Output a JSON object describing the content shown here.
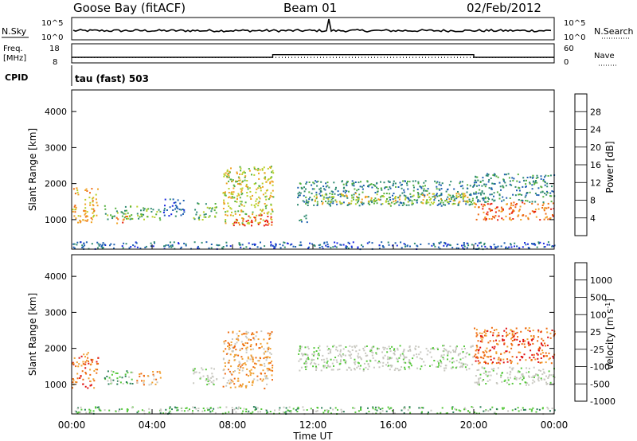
{
  "header": {
    "station": "Goose Bay (fitACF)",
    "beam": "Beam 01",
    "date": "02/Feb/2012"
  },
  "top_panels": {
    "nsky_label": "N.Sky",
    "nsearch_label": "N.Search",
    "noise_ticks": [
      "10^5",
      "10^0"
    ],
    "freq_label": "Freq.",
    "freq_unit": "[MHz]",
    "freq_ticks": [
      "18",
      "8"
    ],
    "nave_label": "Nave",
    "nave_ticks": [
      "60",
      "0"
    ],
    "cpid_label": "CPID",
    "cpid_value": "tau (fast) 503"
  },
  "colors": {
    "power_scale": [
      "#1a28e0",
      "#1d5fb0",
      "#2e8a70",
      "#55b040",
      "#b8d028",
      "#f0a020",
      "#ee6a10",
      "#e82010"
    ],
    "velocity_scale": [
      "#1b27dd",
      "#2a7f58",
      "#55c83a",
      "#c8c8c0",
      "#c8c8c0",
      "#f0a030",
      "#ee6a10",
      "#e01010"
    ],
    "ground_scatter": "#c8c8c0"
  },
  "chart_data": [
    {
      "type": "line",
      "name": "noise",
      "ylabel": "N.Sky",
      "y2label": "N.Search",
      "yticks": [
        "10^5",
        "10^0"
      ],
      "description_values": {
        "sky_noise_level": "~10^1 (near-constant)",
        "spike_time_hours": 12.7
      }
    },
    {
      "type": "line",
      "name": "frequency-nave",
      "ylabel": "Freq. [MHz]",
      "ylim": [
        8,
        18
      ],
      "y2label": "Nave",
      "y2lim": [
        0,
        60
      ],
      "freq_steps": [
        {
          "from_hours": 0,
          "to_hours": 10,
          "mhz": 10.9
        },
        {
          "from_hours": 10,
          "to_hours": 20,
          "mhz": 12.3
        },
        {
          "from_hours": 20,
          "to_hours": 24,
          "mhz": 10.9
        }
      ],
      "nave_level": 17
    },
    {
      "type": "heatmap",
      "name": "power",
      "ylabel": "Slant Range [km]",
      "xlim": [
        0,
        24
      ],
      "ylim": [
        180,
        4600
      ],
      "yticks": [
        1000,
        2000,
        3000,
        4000
      ],
      "colorbar_label": "Power [dB]",
      "colorbar_ticks": [
        "4",
        "8",
        "12",
        "16",
        "20",
        "24",
        "28"
      ],
      "blobs": [
        {
          "t0": 0.0,
          "t1": 1.3,
          "r0": 900,
          "r1": 1900,
          "level": 5
        },
        {
          "t0": 1.6,
          "t1": 3.0,
          "r0": 1000,
          "r1": 1400,
          "level": 3
        },
        {
          "t0": 2.2,
          "t1": 2.8,
          "r0": 900,
          "r1": 1150,
          "level": 6
        },
        {
          "t0": 3.2,
          "t1": 4.4,
          "r0": 1000,
          "r1": 1400,
          "level": 3
        },
        {
          "t0": 4.5,
          "t1": 5.6,
          "r0": 1100,
          "r1": 1600,
          "level": 1
        },
        {
          "t0": 6.0,
          "t1": 7.2,
          "r0": 1000,
          "r1": 1500,
          "level": 3
        },
        {
          "t0": 7.5,
          "t1": 10.0,
          "r0": 900,
          "r1": 2500,
          "level": 4
        },
        {
          "t0": 8.0,
          "t1": 10.0,
          "r0": 850,
          "r1": 1150,
          "level": 7
        },
        {
          "t0": 11.2,
          "t1": 11.8,
          "r0": 950,
          "r1": 1150,
          "level": 2
        },
        {
          "t0": 11.2,
          "t1": 20.0,
          "r0": 1400,
          "r1": 2100,
          "level": 2
        },
        {
          "t0": 12.0,
          "t1": 20.0,
          "r0": 1450,
          "r1": 1750,
          "level": 4
        },
        {
          "t0": 20.0,
          "t1": 24.0,
          "r0": 1000,
          "r1": 1500,
          "level": 6
        },
        {
          "t0": 20.0,
          "t1": 24.0,
          "r0": 1500,
          "r1": 2300,
          "level": 2
        },
        {
          "t0": 0.0,
          "t1": 24.0,
          "r0": 200,
          "r1": 400,
          "level": 1
        }
      ]
    },
    {
      "type": "heatmap",
      "name": "velocity",
      "xlabel": "Time UT",
      "ylabel": "Slant Range [km]",
      "xlim": [
        0,
        24
      ],
      "ylim": [
        180,
        4600
      ],
      "xticks": [
        "00:00",
        "04:00",
        "08:00",
        "12:00",
        "16:00",
        "20:00",
        "00:00"
      ],
      "yticks": [
        1000,
        2000,
        3000,
        4000
      ],
      "colorbar_label": "Velocity [m s^-1]",
      "colorbar_ticks": [
        "1000",
        "500",
        "100",
        "25",
        "-25",
        "-100",
        "-500",
        "-1000"
      ],
      "blobs": [
        {
          "t0": 0.0,
          "t1": 1.3,
          "r0": 900,
          "r1": 1900,
          "level": 6
        },
        {
          "t0": 1.6,
          "t1": 3.0,
          "r0": 1000,
          "r1": 1400,
          "level": 2
        },
        {
          "t0": 3.2,
          "t1": 4.4,
          "r0": 1000,
          "r1": 1400,
          "level": 5
        },
        {
          "t0": 6.0,
          "t1": 7.2,
          "r0": 1000,
          "r1": 1500,
          "level": 3
        },
        {
          "t0": 7.5,
          "t1": 10.0,
          "r0": 900,
          "r1": 2500,
          "level": 5
        },
        {
          "t0": 11.2,
          "t1": 20.0,
          "r0": 1400,
          "r1": 2100,
          "level": 3
        },
        {
          "t0": 20.0,
          "t1": 24.0,
          "r0": 1000,
          "r1": 1500,
          "level": 3
        },
        {
          "t0": 20.0,
          "t1": 24.0,
          "r0": 1600,
          "r1": 2600,
          "level": 6
        },
        {
          "t0": 0.0,
          "t1": 24.0,
          "r0": 200,
          "r1": 400,
          "level": 2
        }
      ]
    }
  ]
}
